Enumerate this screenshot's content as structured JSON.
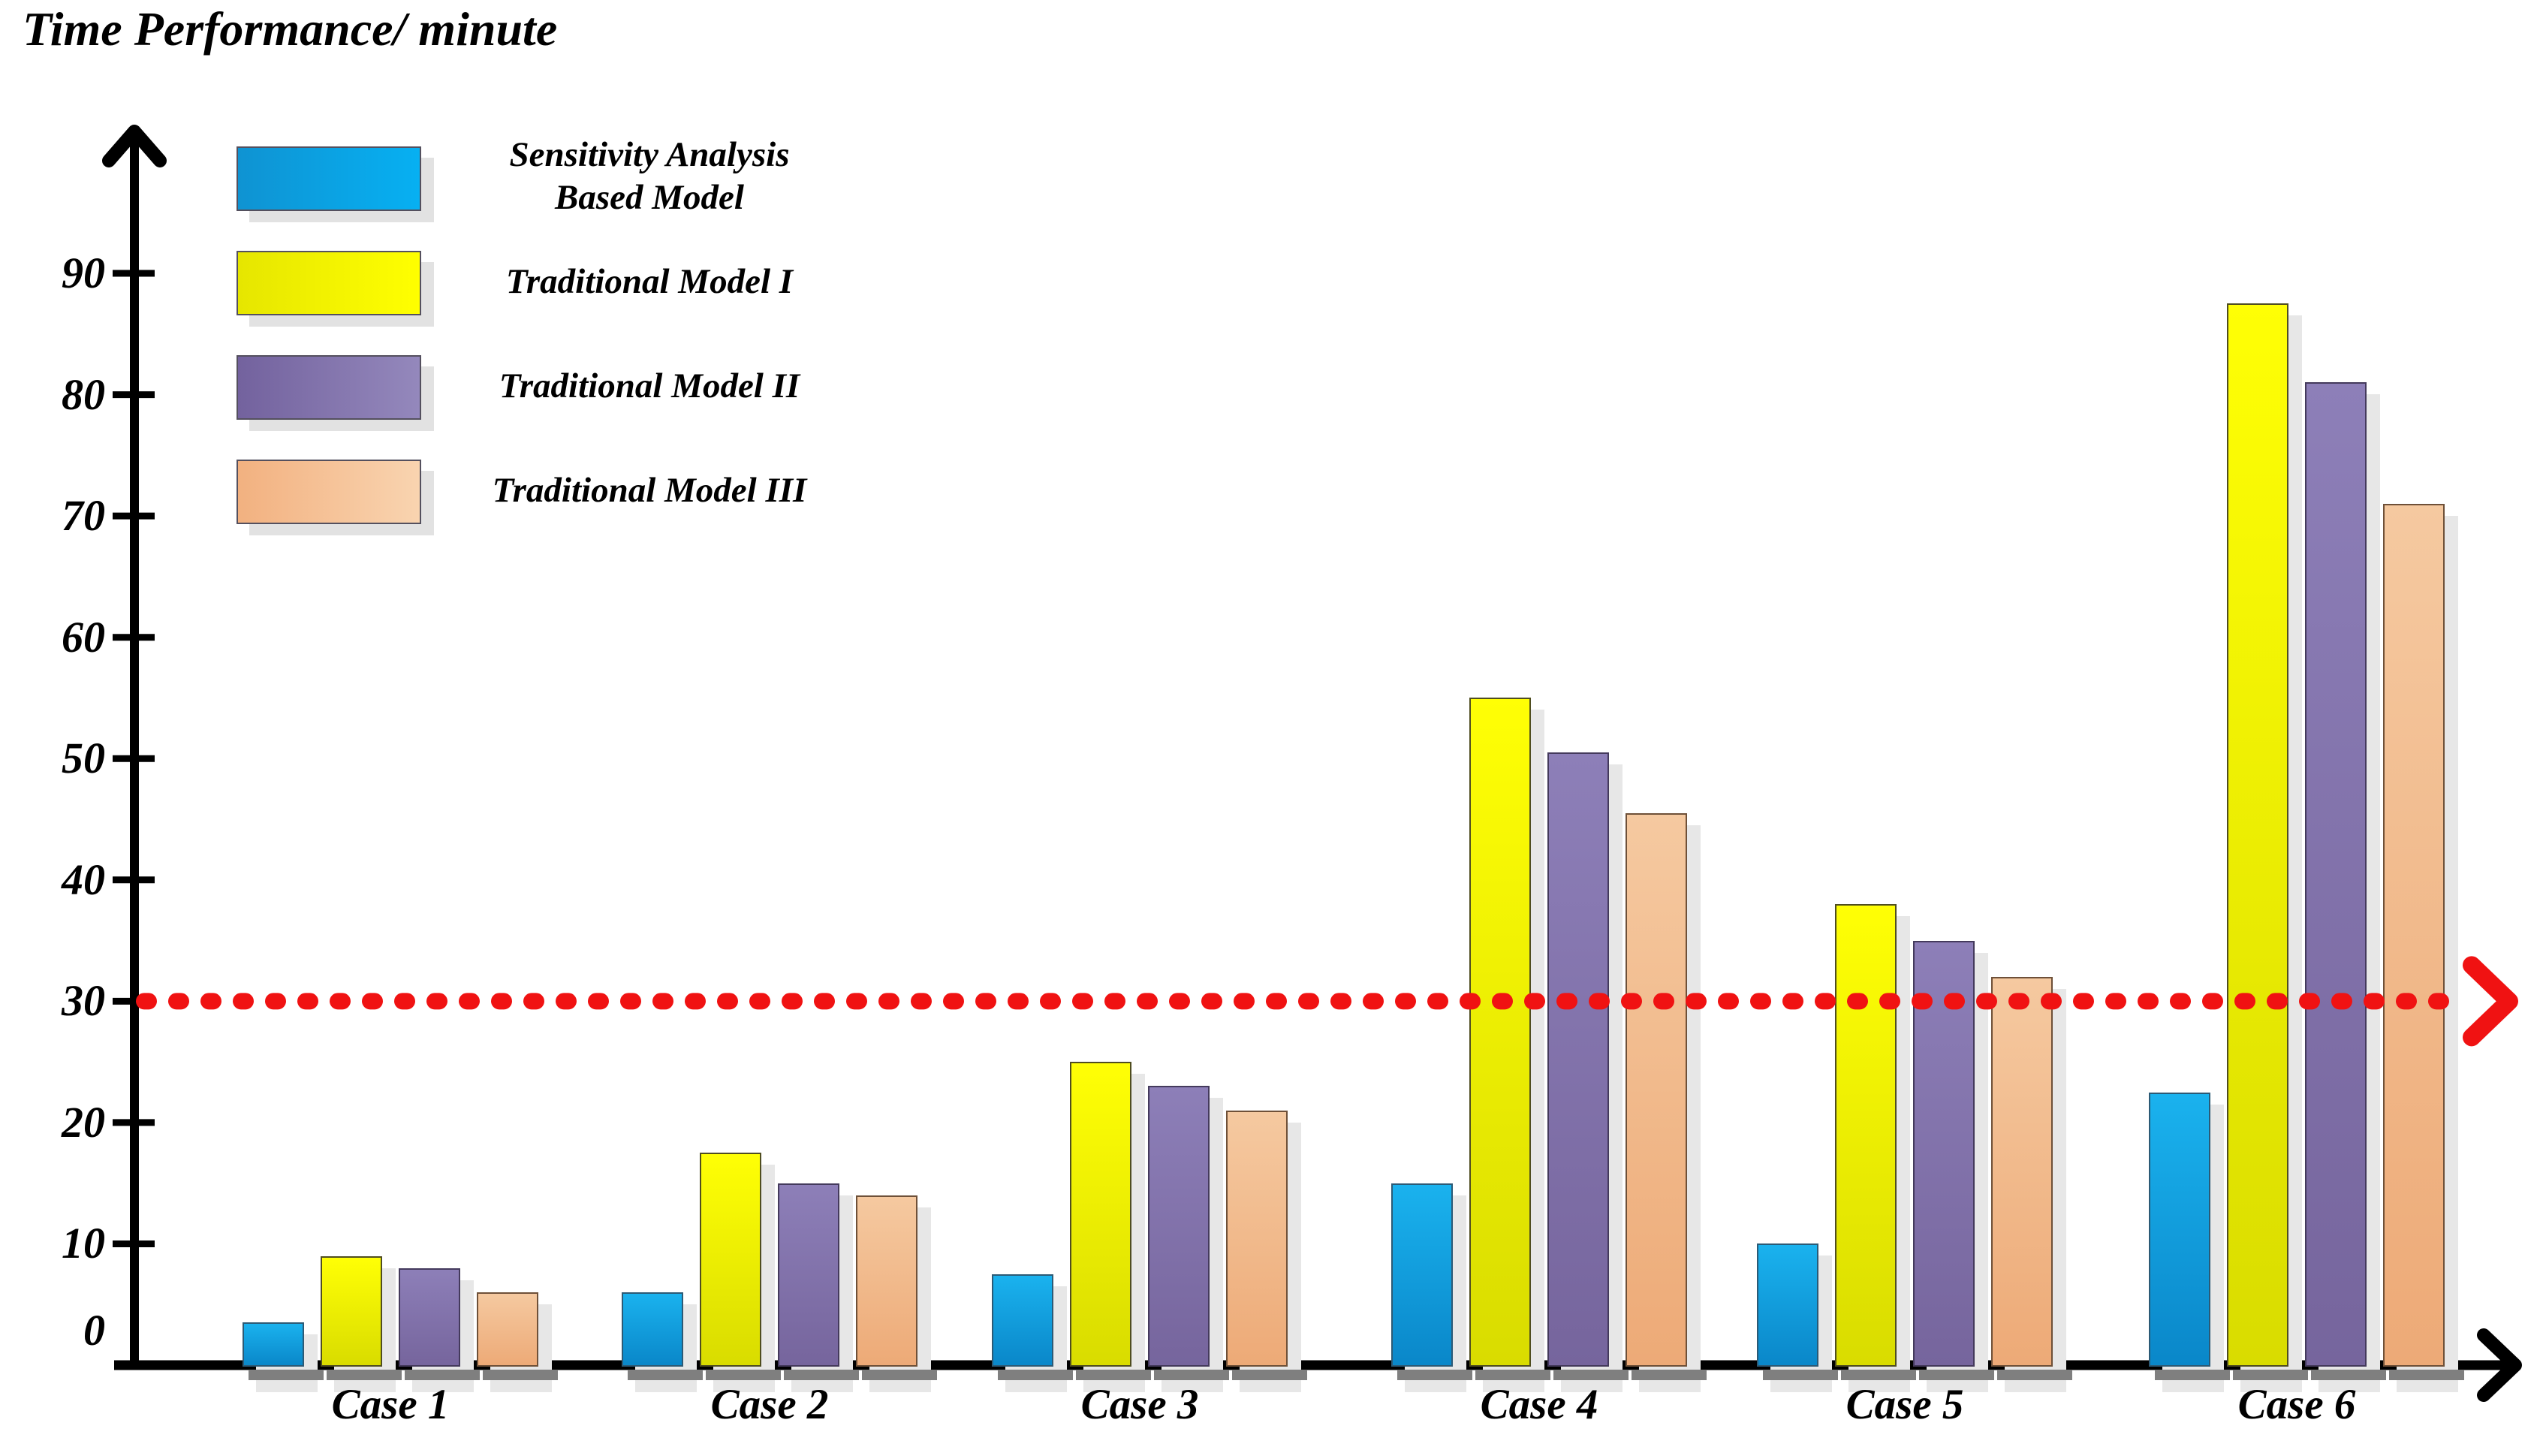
{
  "title": "Time Performance/ minute",
  "legend": {
    "items": [
      {
        "label": "Sensitivity Analysis\nBased Model"
      },
      {
        "label": "Traditional Model I"
      },
      {
        "label": "Traditional Model II"
      },
      {
        "label": "Traditional Model III"
      }
    ]
  },
  "chart_data": {
    "type": "bar",
    "title": "Time Performance/ minute",
    "xlabel": "",
    "ylabel": "Time Performance/ minute",
    "categories": [
      "Case 1",
      "Case 2",
      "Case 3",
      "Case 4",
      "Case 5",
      "Case 6"
    ],
    "series": [
      {
        "name": "Sensitivity Analysis Based Model",
        "values": [
          3.5,
          6,
          7.5,
          15,
          10,
          22.5
        ],
        "bar_gradient": [
          "#1ab2ee",
          "#0a87c9"
        ],
        "legend_gradient": [
          "#0f93d2",
          "#07b0f2"
        ],
        "border": "#2c5a75"
      },
      {
        "name": "Traditional Model I",
        "values": [
          9,
          17.5,
          25,
          55,
          38,
          87.5
        ],
        "bar_gradient": [
          "#ffff05",
          "#d9dc00"
        ],
        "legend_gradient": [
          "#e6e600",
          "#ffff00"
        ],
        "border": "#4f4d20"
      },
      {
        "name": "Traditional Model II",
        "values": [
          8,
          15,
          23,
          50.5,
          35,
          81
        ],
        "bar_gradient": [
          "#8d7fb8",
          "#76659d"
        ],
        "legend_gradient": [
          "#73629e",
          "#9488bc"
        ],
        "border": "#443a5c"
      },
      {
        "name": "Traditional Model III",
        "values": [
          6,
          14,
          21,
          45.5,
          32,
          71
        ],
        "bar_gradient": [
          "#f5c9a0",
          "#edaa77"
        ],
        "legend_gradient": [
          "#f2b180",
          "#f9d4b0"
        ],
        "border": "#6e5038"
      }
    ],
    "ylim": [
      0,
      95
    ],
    "y_ticks": [
      0,
      10,
      20,
      30,
      40,
      50,
      60,
      70,
      80,
      90
    ],
    "reference_line": {
      "value": 30,
      "color": "#f01212",
      "style": "dashed",
      "arrow": true
    },
    "axis_color": "#000000",
    "grid": false,
    "legend_position": "top-left"
  }
}
